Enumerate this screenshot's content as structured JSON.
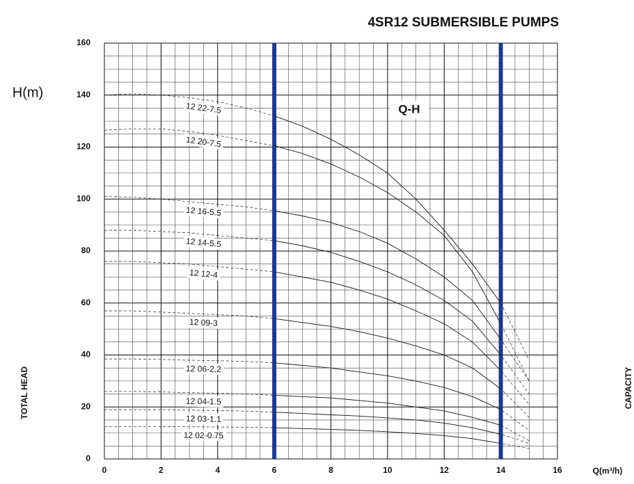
{
  "chart_data": {
    "type": "line",
    "title": "4SR12 SUBMERSIBLE PUMPS",
    "y_axis_unit": "H(m)",
    "y_axis_label": "TOTAL HEAD",
    "x_axis_label": "CAPACITY",
    "x_axis_unit": "Q(m³/h)",
    "annotation": "Q-H",
    "x": [
      0,
      1,
      2,
      3,
      4,
      5,
      6,
      7,
      8,
      9,
      10,
      11,
      12,
      13,
      14,
      15
    ],
    "xlim": [
      0,
      16
    ],
    "xticks": [
      0,
      2,
      4,
      6,
      8,
      10,
      12,
      14,
      16
    ],
    "ylim": [
      0,
      160
    ],
    "yticks": [
      0,
      20,
      40,
      60,
      80,
      100,
      120,
      140,
      160
    ],
    "grid": true,
    "minor_grid": {
      "x": 0.5,
      "y": 5
    },
    "operating_range": [
      6,
      14
    ],
    "operating_range_color": "#1f3a8a",
    "series": [
      {
        "name": "12 22-7.5",
        "color": "#222",
        "values": [
          140,
          140.5,
          140,
          139,
          137.5,
          135,
          132,
          128,
          123,
          117,
          110,
          100,
          88,
          75,
          60,
          38
        ]
      },
      {
        "name": "12 20-7.5",
        "color": "#222",
        "values": [
          126.5,
          127,
          127,
          126,
          124.5,
          122.5,
          120.5,
          117.5,
          113.5,
          108.5,
          102.5,
          95,
          86,
          72,
          52,
          30
        ]
      },
      {
        "name": "12 16-5.5",
        "color": "#222",
        "values": [
          101,
          100.7,
          100,
          99,
          98,
          97,
          95.5,
          93.5,
          91,
          87.5,
          83,
          77,
          70,
          61,
          46,
          30
        ]
      },
      {
        "name": "12 14-5.5",
        "color": "#222",
        "values": [
          88,
          88,
          87.5,
          87,
          86,
          85,
          84,
          82,
          79.5,
          76,
          72,
          67,
          61,
          53,
          40,
          25
        ]
      },
      {
        "name": "12 12-4",
        "color": "#222",
        "values": [
          76,
          76,
          75.5,
          75,
          74,
          73,
          72,
          70,
          68,
          65,
          61.5,
          57,
          52,
          45,
          34,
          21
        ]
      },
      {
        "name": "12 09-3",
        "color": "#222",
        "values": [
          57,
          57,
          56.5,
          56,
          55.5,
          55,
          54,
          52.5,
          51,
          49,
          46.5,
          43.5,
          40,
          35,
          27,
          16
        ]
      },
      {
        "name": "12 06-2.2",
        "color": "#222",
        "values": [
          38.5,
          38.5,
          38.3,
          38,
          37.8,
          37.5,
          37,
          36,
          35,
          33.5,
          32,
          30,
          27.5,
          24,
          19,
          11
        ]
      },
      {
        "name": "12 04-1.5",
        "color": "#222",
        "values": [
          26,
          26,
          25.8,
          25.5,
          25.3,
          25,
          24.5,
          24,
          23.5,
          22.5,
          21.5,
          20,
          18.5,
          16,
          13,
          7
        ]
      },
      {
        "name": "12 03-1.1",
        "color": "#222",
        "values": [
          19,
          19,
          19,
          18.8,
          18.6,
          18.4,
          18,
          17.5,
          17,
          16.5,
          15.8,
          15,
          13.8,
          12,
          9.5,
          6
        ]
      },
      {
        "name": "12 02-0.75",
        "color": "#222",
        "values": [
          12.5,
          12.5,
          12.5,
          12.4,
          12.3,
          12.2,
          12,
          11.7,
          11.4,
          11,
          10.5,
          9.8,
          9,
          7.8,
          6,
          4
        ]
      }
    ]
  }
}
